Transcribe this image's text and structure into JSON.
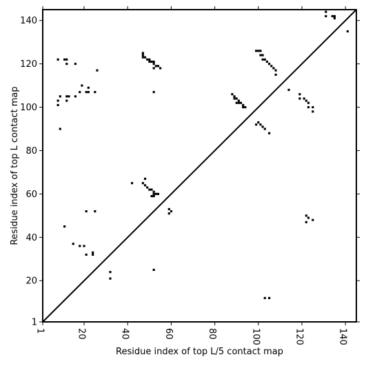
{
  "chart_data": {
    "type": "scatter",
    "xlabel": "Residue index of top L/5 contact map",
    "ylabel": "Residue index of top L contact map",
    "xlim": [
      1,
      145
    ],
    "ylim": [
      1,
      145
    ],
    "xticks": [
      1,
      20,
      40,
      60,
      80,
      100,
      120,
      140
    ],
    "yticks": [
      1,
      20,
      40,
      60,
      80,
      100,
      120,
      140
    ],
    "diagonal": true,
    "grid": false,
    "marker_color": "#000000",
    "series": [
      {
        "points": [
          [
            8,
            122
          ],
          [
            11,
            122
          ],
          [
            12,
            122
          ],
          [
            12,
            120
          ],
          [
            16,
            120
          ],
          [
            26,
            117
          ],
          [
            47,
            125
          ],
          [
            47,
            124
          ],
          [
            47,
            123
          ],
          [
            48,
            123
          ],
          [
            49,
            122
          ],
          [
            50,
            122
          ],
          [
            50,
            121
          ],
          [
            51,
            121
          ],
          [
            52,
            121
          ],
          [
            52,
            120
          ],
          [
            53,
            119
          ],
          [
            54,
            119
          ],
          [
            55,
            118
          ],
          [
            52,
            118
          ],
          [
            8,
            103
          ],
          [
            8,
            101
          ],
          [
            9,
            105
          ],
          [
            12,
            105
          ],
          [
            13,
            105
          ],
          [
            16,
            105
          ],
          [
            18,
            107
          ],
          [
            19,
            110
          ],
          [
            21,
            107
          ],
          [
            22,
            109
          ],
          [
            22,
            107
          ],
          [
            25,
            107
          ],
          [
            12,
            103
          ],
          [
            9,
            90
          ],
          [
            52,
            107
          ],
          [
            114,
            108
          ],
          [
            99,
            126
          ],
          [
            100,
            126
          ],
          [
            101,
            126
          ],
          [
            101,
            124
          ],
          [
            102,
            124
          ],
          [
            102,
            122
          ],
          [
            103,
            122
          ],
          [
            104,
            121
          ],
          [
            105,
            120
          ],
          [
            106,
            119
          ],
          [
            107,
            118
          ],
          [
            108,
            117
          ],
          [
            108,
            115
          ],
          [
            88,
            106
          ],
          [
            89,
            105
          ],
          [
            89,
            104
          ],
          [
            90,
            104
          ],
          [
            91,
            103
          ],
          [
            90,
            102
          ],
          [
            91,
            102
          ],
          [
            92,
            102
          ],
          [
            93,
            101
          ],
          [
            93,
            100
          ],
          [
            94,
            100
          ],
          [
            99,
            92
          ],
          [
            100,
            93
          ],
          [
            101,
            92
          ],
          [
            102,
            91
          ],
          [
            103,
            90
          ],
          [
            105,
            88
          ],
          [
            119,
            106
          ],
          [
            119,
            104
          ],
          [
            121,
            104
          ],
          [
            122,
            103
          ],
          [
            123,
            102
          ],
          [
            123,
            100
          ],
          [
            125,
            100
          ],
          [
            125,
            98
          ],
          [
            131,
            144
          ],
          [
            131,
            142
          ],
          [
            134,
            142
          ],
          [
            135,
            142
          ],
          [
            135,
            141
          ],
          [
            141,
            135
          ],
          [
            42,
            65
          ],
          [
            47,
            65
          ],
          [
            48,
            67
          ],
          [
            48,
            64
          ],
          [
            49,
            63
          ],
          [
            50,
            62
          ],
          [
            51,
            62
          ],
          [
            52,
            61
          ],
          [
            51,
            59
          ],
          [
            52,
            60
          ],
          [
            53,
            60
          ],
          [
            54,
            60
          ],
          [
            52,
            59
          ],
          [
            59,
            53
          ],
          [
            59,
            51
          ],
          [
            60,
            52
          ],
          [
            11,
            45
          ],
          [
            15,
            37
          ],
          [
            18,
            36
          ],
          [
            20,
            36
          ],
          [
            21,
            32
          ],
          [
            24,
            33
          ],
          [
            24,
            32
          ],
          [
            21,
            52
          ],
          [
            25,
            52
          ],
          [
            32,
            24
          ],
          [
            32,
            21
          ],
          [
            52,
            25
          ],
          [
            122,
            50
          ],
          [
            123,
            49
          ],
          [
            122,
            47
          ],
          [
            125,
            48
          ],
          [
            103,
            12
          ],
          [
            105,
            12
          ]
        ]
      }
    ]
  }
}
